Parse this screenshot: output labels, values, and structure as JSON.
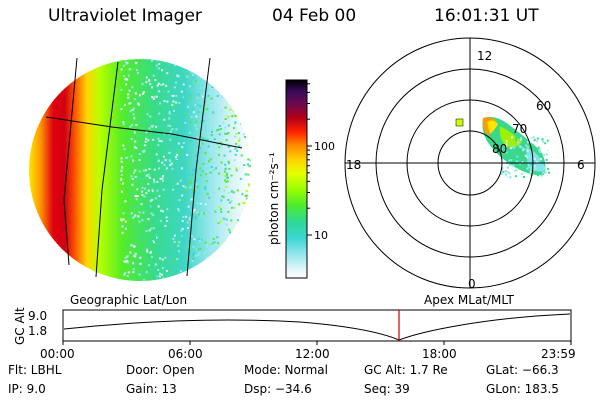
{
  "header": {
    "instrument": "Ultraviolet Imager",
    "date": "04 Feb 00",
    "time": "16:01:31 UT"
  },
  "colorbar": {
    "label": "photon cm⁻²s⁻¹",
    "ticks": [
      "100",
      "10"
    ],
    "colors": [
      "#000000",
      "#3a0a5a",
      "#5c0a60",
      "#8a0a2a",
      "#c80010",
      "#ff2000",
      "#ff7a00",
      "#ffb400",
      "#ffe600",
      "#e6ff00",
      "#a8ff00",
      "#5cf000",
      "#2ee07a",
      "#20d6c0",
      "#5ae0e6",
      "#a8eef4",
      "#dff6fa",
      "#ffffff"
    ]
  },
  "panels": {
    "left_label": "Geographic Lat/Lon",
    "right_label": "Apex MLat/MLT"
  },
  "polar": {
    "mlt_labels": {
      "top": "12",
      "right": "6",
      "bottom": "0",
      "left": "18"
    },
    "lat_labels": [
      "60",
      "70",
      "80"
    ]
  },
  "alt_plot": {
    "ylabel": "GC Alt",
    "yticks": [
      "9.0",
      "1.8"
    ],
    "xticks": [
      "00:00",
      "06:00",
      "12:00",
      "18:00",
      "23:59"
    ]
  },
  "info": {
    "flt": "Flt: LBHL",
    "ip": "IP:  9.0",
    "door": "Door: Open",
    "gain": "Gain: 13",
    "mode": "Mode: Normal",
    "dsp": "Dsp:   −34.6",
    "gcalt": "GC Alt: 1.7 Re",
    "seq": "Seq: 39",
    "glat": "GLat:  −66.3",
    "glon": "GLon: 183.5"
  }
}
